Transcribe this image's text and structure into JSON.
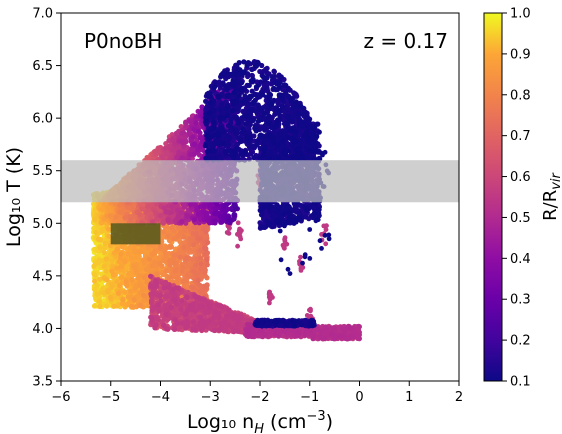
{
  "chart_data": {
    "type": "scatter",
    "title_left": "P0noBH",
    "title_right": "z = 0.17",
    "xlabel": "Log₁₀ n",
    "xlabel_sub": "H",
    "xlabel_unit": " (cm",
    "xlabel_sup": "−3",
    "xlabel_close": ")",
    "ylabel": "Log₁₀ T (K)",
    "xlim": [
      -6,
      2
    ],
    "ylim": [
      3.5,
      7.0
    ],
    "xticks": [
      "−6",
      "−5",
      "−4",
      "−3",
      "−2",
      "−1",
      "0",
      "1",
      "2"
    ],
    "yticks": [
      "3.5",
      "4.0",
      "4.5",
      "5.0",
      "5.5",
      "6.0",
      "6.5",
      "7.0"
    ],
    "colorbar": {
      "label": "R/R",
      "label_sub": "vir",
      "range": [
        0.1,
        1.0
      ],
      "ticks": [
        "0.1",
        "0.2",
        "0.3",
        "0.4",
        "0.5",
        "0.6",
        "0.7",
        "0.8",
        "0.9",
        "1.0"
      ],
      "colormap": "plasma"
    },
    "shaded_band": {
      "y": [
        5.2,
        5.6
      ],
      "color": "#bdbdbd"
    },
    "dark_box": {
      "x": [
        -5.0,
        -4.0
      ],
      "y": [
        4.8,
        5.0
      ],
      "color": "#5c5a1e"
    },
    "series": [
      {
        "region": "hot-halo-arc",
        "x_range": [
          -3.2,
          -0.6
        ],
        "y_range": [
          5.0,
          6.6
        ],
        "r_rvir": 0.1
      },
      {
        "region": "diffuse-upper-left",
        "x_range": [
          -5.3,
          -2.5
        ],
        "y_range": [
          5.0,
          6.3
        ],
        "r_rvir": [
          0.3,
          1.0
        ]
      },
      {
        "region": "cool-warm-outskirts",
        "x_range": [
          -5.4,
          -3.2
        ],
        "y_range": [
          4.2,
          5.5
        ],
        "r_rvir": [
          0.85,
          1.0
        ]
      },
      {
        "region": "cold-dense-floor",
        "x_range": [
          -2.2,
          0.0
        ],
        "y_range": [
          3.9,
          4.05
        ],
        "r_rvir": [
          0.1,
          0.5
        ]
      },
      {
        "region": "inner-falling-clumps",
        "x_range": [
          -2.5,
          -0.6
        ],
        "y_range": [
          4.2,
          5.5
        ],
        "r_rvir": 0.5
      }
    ]
  }
}
